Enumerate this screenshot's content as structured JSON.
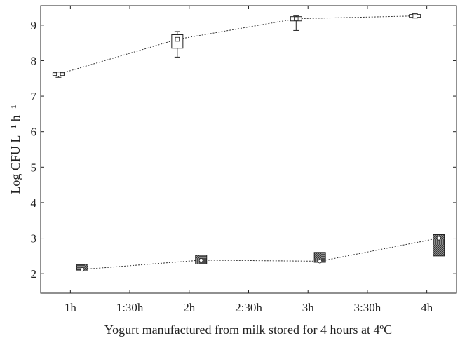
{
  "chart_data": {
    "type": "box",
    "title": "",
    "xlabel": "Yogurt manufactured from milk stored for 4 hours  at 4ºC",
    "ylabel": "Log CFU L⁻¹ h⁻¹",
    "x_tick_labels": [
      "1h",
      "1:30h",
      "2h",
      "2:30h",
      "3h",
      "3:30h",
      "4h"
    ],
    "y_ticks": [
      2,
      3,
      4,
      5,
      6,
      7,
      8,
      9
    ],
    "ylim": [
      1.45,
      9.55
    ],
    "xlim": [
      0.5,
      7.5
    ],
    "grid": false,
    "legend": "none",
    "series": [
      {
        "style": "open",
        "color": "#ffffff",
        "boxes": [
          {
            "x": 0.8,
            "median": 7.62,
            "q1": 7.58,
            "q3": 7.66,
            "min": 7.53,
            "max": 7.68
          },
          {
            "x": 2.8,
            "median": 8.6,
            "q1": 8.35,
            "q3": 8.73,
            "min": 8.1,
            "max": 8.82
          },
          {
            "x": 4.8,
            "median": 9.18,
            "q1": 9.12,
            "q3": 9.24,
            "min": 8.85,
            "max": 9.26
          },
          {
            "x": 6.8,
            "median": 9.26,
            "q1": 9.22,
            "q3": 9.3,
            "min": 9.2,
            "max": 9.32
          }
        ]
      },
      {
        "style": "hatched",
        "color": "#555555",
        "boxes": [
          {
            "x": 1.2,
            "median": 2.12,
            "q1": 2.1,
            "q3": 2.26,
            "min": 2.1,
            "max": 2.26
          },
          {
            "x": 3.2,
            "median": 2.38,
            "q1": 2.27,
            "q3": 2.52,
            "min": 2.27,
            "max": 2.52
          },
          {
            "x": 5.2,
            "median": 2.35,
            "q1": 2.32,
            "q3": 2.6,
            "min": 2.32,
            "max": 2.6
          },
          {
            "x": 7.2,
            "median": 3.0,
            "q1": 2.5,
            "q3": 3.1,
            "min": 2.5,
            "max": 3.1
          }
        ]
      }
    ]
  }
}
